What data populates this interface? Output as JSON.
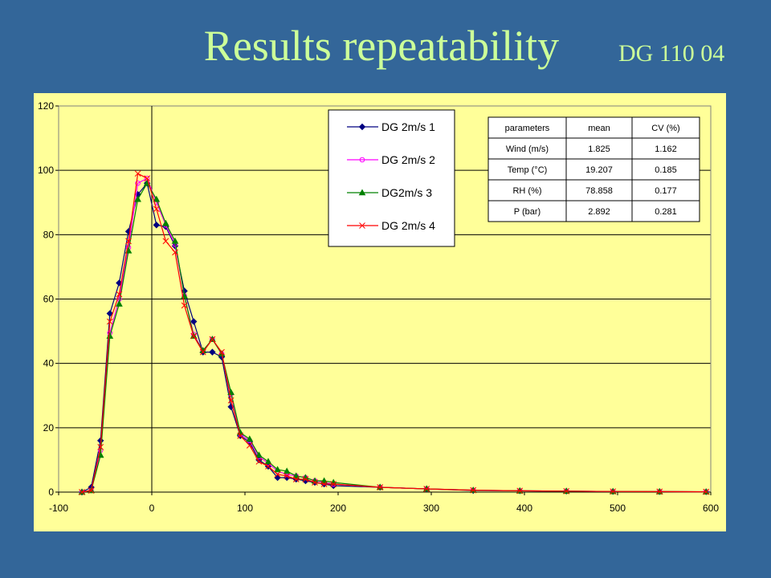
{
  "slide": {
    "title": "Results repeatability",
    "code": "DG 110 04"
  },
  "stats_table": {
    "headers": [
      "parameters",
      "mean",
      "CV (%)"
    ],
    "rows": [
      [
        "Wind (m/s)",
        "1.825",
        "1.162"
      ],
      [
        "Temp  (°C)",
        "19.207",
        "0.185"
      ],
      [
        "RH  (%)",
        "78.858",
        "0.177"
      ],
      [
        "P (bar)",
        "2.892",
        "0.281"
      ]
    ]
  },
  "chart_data": {
    "type": "line",
    "title": "",
    "xlabel": "",
    "ylabel": "",
    "xlim": [
      -100,
      600
    ],
    "ylim": [
      0,
      120
    ],
    "xticks": [
      -100,
      0,
      100,
      200,
      300,
      400,
      500,
      600
    ],
    "yticks": [
      0,
      20,
      40,
      60,
      80,
      100,
      120
    ],
    "grid": "horizontal",
    "legend_position": "top-right",
    "series": [
      {
        "name": "DG 2m/s 1",
        "color": "#000080",
        "marker": "diamond",
        "x": [
          -75,
          -65,
          -55,
          -45,
          -35,
          -25,
          -15,
          -5,
          5,
          15,
          25,
          35,
          45,
          55,
          65,
          75,
          85,
          95,
          105,
          115,
          125,
          135,
          145,
          155,
          165,
          175,
          185,
          195,
          245,
          295,
          345,
          395,
          445,
          495,
          545,
          595
        ],
        "y": [
          0,
          1.5,
          16,
          55.5,
          65,
          81,
          92.5,
          96,
          83,
          82.5,
          76.5,
          62.5,
          53,
          43.5,
          43.5,
          42,
          26.5,
          17.5,
          15.5,
          10,
          8,
          4.5,
          4.5,
          4,
          3.5,
          3,
          2.5,
          2,
          1.5,
          1,
          0.5,
          0.4,
          0.3,
          0.2,
          0.15,
          0.1
        ]
      },
      {
        "name": "DG 2m/s 2",
        "color": "#FF00FF",
        "marker": "circle",
        "x": [
          -75,
          -65,
          -55,
          -45,
          -35,
          -25,
          -15,
          -5,
          5,
          15,
          25,
          35,
          45,
          55,
          65,
          75,
          85,
          95,
          105,
          115,
          125,
          135,
          145,
          155,
          165,
          175,
          185,
          195,
          245,
          295,
          345,
          395,
          445,
          495,
          545,
          595
        ],
        "y": [
          0,
          0.5,
          13,
          49.5,
          60,
          76,
          96,
          97.5,
          90,
          83,
          77,
          61,
          49,
          44,
          47.5,
          43,
          30.5,
          18,
          16,
          11,
          9,
          6.5,
          5.5,
          5,
          4.5,
          3.5,
          3,
          2.5,
          1.5,
          1,
          0.6,
          0.4,
          0.3,
          0.2,
          0.15,
          0.1
        ]
      },
      {
        "name": "DG2m/s 3",
        "color": "#008000",
        "marker": "triangle",
        "x": [
          -75,
          -65,
          -55,
          -45,
          -35,
          -25,
          -15,
          -5,
          5,
          15,
          25,
          35,
          45,
          55,
          65,
          75,
          85,
          95,
          105,
          115,
          125,
          135,
          145,
          155,
          165,
          175,
          185,
          195,
          245,
          295,
          345,
          395,
          445,
          495,
          545,
          595
        ],
        "y": [
          0,
          0.5,
          11.5,
          48.5,
          58.5,
          75,
          91,
          96,
          91,
          83.5,
          78,
          61,
          48.5,
          44,
          47.5,
          43,
          31,
          18.5,
          16.5,
          11.5,
          9.5,
          7,
          6.5,
          5,
          4.5,
          3.5,
          3.5,
          3,
          1.5,
          1,
          0.6,
          0.4,
          0.3,
          0.2,
          0.15,
          0.1
        ]
      },
      {
        "name": "DG 2m/s 4",
        "color": "#FF0000",
        "marker": "x",
        "x": [
          -75,
          -65,
          -55,
          -45,
          -35,
          -25,
          -15,
          -5,
          5,
          15,
          25,
          35,
          45,
          55,
          65,
          75,
          85,
          95,
          105,
          115,
          125,
          135,
          145,
          155,
          165,
          175,
          185,
          195,
          245,
          295,
          345,
          395,
          445,
          495,
          545,
          595
        ],
        "y": [
          0,
          0.5,
          14,
          53,
          61.5,
          78,
          99,
          97.5,
          88,
          78,
          74.5,
          58,
          48.5,
          43.5,
          47.5,
          43.5,
          28.5,
          17.5,
          14.5,
          9.5,
          8,
          5.5,
          5,
          4,
          4,
          3,
          2.5,
          2.5,
          1.5,
          1,
          0.6,
          0.4,
          0.3,
          0.2,
          0.15,
          0.1
        ]
      }
    ]
  }
}
